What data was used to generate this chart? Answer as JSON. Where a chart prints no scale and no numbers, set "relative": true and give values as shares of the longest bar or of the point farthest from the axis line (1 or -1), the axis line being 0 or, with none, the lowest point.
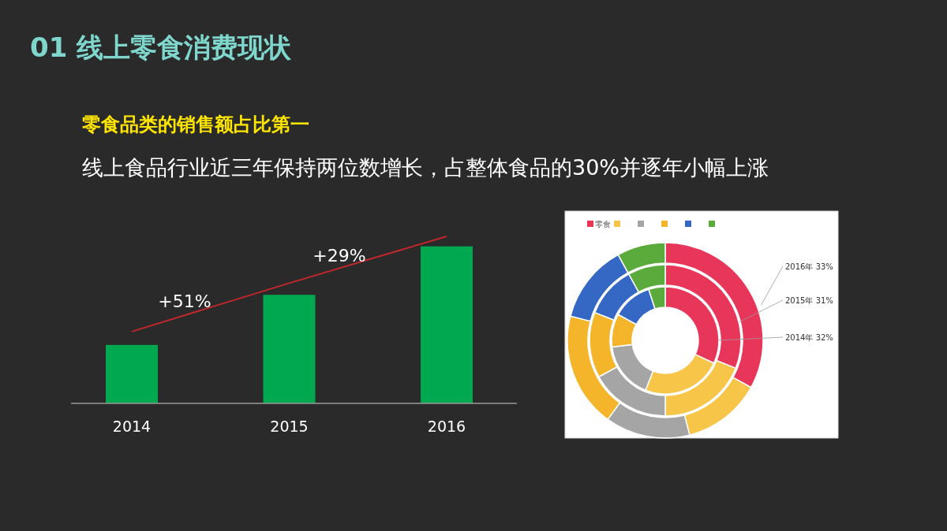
{
  "chart_data": [
    {
      "type": "bar",
      "title": "01 线上零食消费现状",
      "subtitle": "零食品类的销售额占比第一",
      "annotations": [
        "线上食品行业近三年保持两位数增长，占整体食品的30%并逐年小幅上涨",
        "+51%",
        "+29%"
      ],
      "categories": [
        "2014",
        "2015",
        "2016"
      ],
      "relative": true,
      "series": [
        {
          "values": [
            0.35,
            0.65,
            0.94
          ],
          "color": "#00a84f"
        },
        {
          "type": "line",
          "values": [
            0.43,
            0.72,
            1
          ],
          "color": "#c0282d"
        }
      ]
    },
    {
      "type": "donut",
      "categories": [
        "零食",
        null,
        null,
        null,
        null,
        null
      ],
      "colors": [
        "#e8365a",
        "#f7c548",
        "#a5a5a5",
        "#f4b52a",
        "#3567c4",
        "#5aaa3c"
      ],
      "legend": "top",
      "series": [
        {
          "name": "2016年",
          "values": [
            33,
            13,
            14,
            19,
            13,
            8
          ],
          "value_labels": [
            "33%",
            null,
            null,
            null,
            null,
            null
          ]
        },
        {
          "name": "2015年",
          "values": [
            31,
            19,
            17,
            14,
            11,
            8
          ],
          "value_labels": [
            "31%",
            null,
            null,
            null,
            null,
            null
          ]
        },
        {
          "name": "2014年",
          "values": [
            32,
            24,
            17,
            10,
            12,
            5
          ],
          "value_labels": [
            "32%",
            null,
            null,
            null,
            null,
            null
          ]
        }
      ]
    }
  ]
}
